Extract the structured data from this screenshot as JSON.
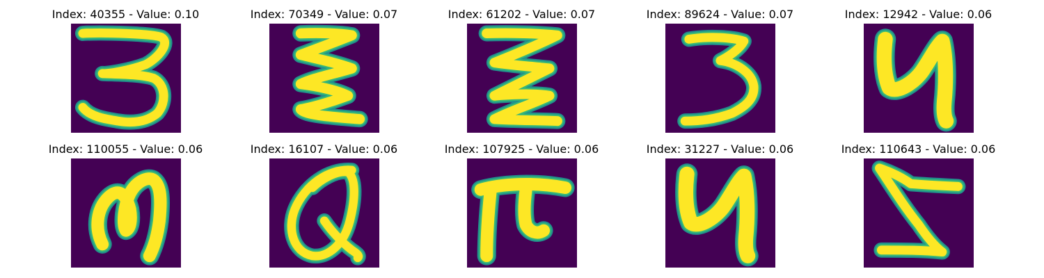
{
  "colors": {
    "background": "#440154",
    "stroke_core": "#fde725",
    "stroke_edge": "#35b779",
    "stroke_halo": "#21918c"
  },
  "panels": [
    {
      "title": "Index: 40355 - Value: 0.10",
      "glyph": "three-curly"
    },
    {
      "title": "Index: 70349 - Value: 0.07",
      "glyph": "zigzag-e"
    },
    {
      "title": "Index: 61202 - Value: 0.07",
      "glyph": "zigzag-z"
    },
    {
      "title": "Index: 89624 - Value: 0.07",
      "glyph": "three"
    },
    {
      "title": "Index: 12942 - Value: 0.06",
      "glyph": "u-bold"
    },
    {
      "title": "Index: 110055 - Value: 0.06",
      "glyph": "m-loop"
    },
    {
      "title": "Index: 16107 - Value: 0.06",
      "glyph": "q-loop"
    },
    {
      "title": "Index: 107925 - Value: 0.06",
      "glyph": "pi"
    },
    {
      "title": "Index: 31227 - Value: 0.06",
      "glyph": "u-bold"
    },
    {
      "title": "Index: 110643 - Value: 0.06",
      "glyph": "z-reverse"
    }
  ]
}
